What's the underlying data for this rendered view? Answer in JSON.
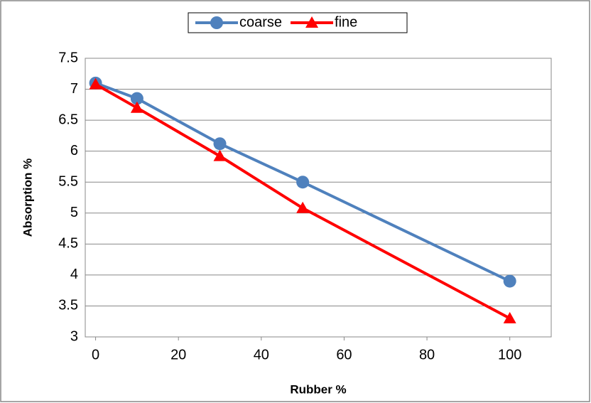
{
  "chart_data": {
    "type": "line",
    "x": [
      0,
      10,
      30,
      50,
      100
    ],
    "series": [
      {
        "name": "coarse",
        "color": "#4f81bd",
        "marker": "circle",
        "values": [
          7.1,
          6.85,
          6.12,
          5.5,
          3.9
        ]
      },
      {
        "name": "fine",
        "color": "#ff0000",
        "marker": "triangle",
        "values": [
          7.08,
          6.7,
          5.92,
          5.08,
          3.3
        ]
      }
    ],
    "xlabel": "Rubber %",
    "ylabel": "Absorption %",
    "xlim": [
      -2.5,
      110
    ],
    "xticks": [
      0,
      20,
      40,
      60,
      80,
      100
    ],
    "ylim": [
      3,
      7.5
    ],
    "yticks": [
      3,
      3.5,
      4,
      4.5,
      5,
      5.5,
      6,
      6.5,
      7,
      7.5
    ],
    "grid": true,
    "legend": "top"
  }
}
